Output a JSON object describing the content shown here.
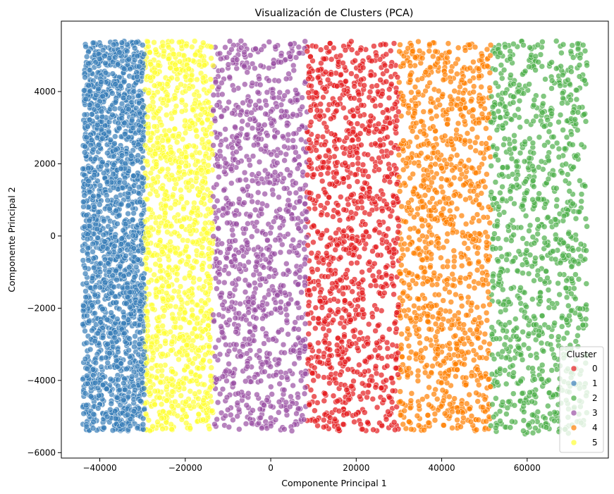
{
  "chart_data": {
    "type": "scatter",
    "title": "Visualización de Clusters (PCA)",
    "xlabel": "Componente Principal 1",
    "ylabel": "Componente Principal 2",
    "xlim": [
      -49000,
      79000
    ],
    "ylim": [
      -6150,
      5950
    ],
    "xticks": [
      -40000,
      -20000,
      0,
      20000,
      40000,
      60000
    ],
    "yticks": [
      -6000,
      -4000,
      -2000,
      0,
      2000,
      4000
    ],
    "grid": false,
    "legend": {
      "title": "Cluster",
      "placement": "lower-right"
    },
    "point_alpha": 0.7,
    "series": [
      {
        "name": "0",
        "color": "#e41a1c",
        "x_range": [
          8500,
          30000
        ],
        "y_range": [
          -5400,
          5400
        ],
        "count": 1100
      },
      {
        "name": "1",
        "color": "#377eb8",
        "x_range": [
          -44000,
          -29500
        ],
        "y_range": [
          -5400,
          5400
        ],
        "count": 1900
      },
      {
        "name": "2",
        "color": "#4daf4a",
        "x_range": [
          51500,
          74000
        ],
        "y_range": [
          -5500,
          5400
        ],
        "count": 1000
      },
      {
        "name": "3",
        "color": "#984ea3",
        "x_range": [
          -13500,
          8500
        ],
        "y_range": [
          -5400,
          5400
        ],
        "count": 1050
      },
      {
        "name": "4",
        "color": "#ff7f00",
        "x_range": [
          30000,
          51500
        ],
        "y_range": [
          -5400,
          5400
        ],
        "count": 1100
      },
      {
        "name": "5",
        "color": "#ffff33",
        "x_range": [
          -29500,
          -13500
        ],
        "y_range": [
          -5400,
          5400
        ],
        "count": 1200
      }
    ]
  }
}
